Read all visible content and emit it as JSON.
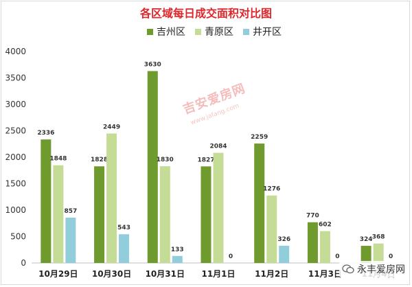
{
  "chart_data": {
    "type": "bar",
    "title": "各区域每日成交面积对比图",
    "categories": [
      "10月29日",
      "10月30日",
      "10月31日",
      "11月1日",
      "11月2日",
      "11月3日",
      "11月4日"
    ],
    "series": [
      {
        "name": "吉州区",
        "color": "#6f9a2e",
        "values": [
          2336,
          1828,
          3630,
          1827,
          2259,
          770,
          324
        ]
      },
      {
        "name": "青原区",
        "color": "#c5dc96",
        "values": [
          1848,
          2449,
          1830,
          2084,
          1276,
          602,
          368
        ]
      },
      {
        "name": "井开区",
        "color": "#92cddc",
        "values": [
          857,
          543,
          133,
          0,
          326,
          0,
          0
        ]
      }
    ],
    "ylim": [
      0,
      4000
    ],
    "yticks": [
      0,
      500,
      1000,
      1500,
      2000,
      2500,
      3000,
      3500,
      4000
    ],
    "legend": "top-center",
    "grid": false
  },
  "watermark": {
    "text": "吉安爱房网",
    "sub": "www.jafang.com"
  },
  "brand": {
    "text": "永丰爱房网",
    "icon": "wechat-icon"
  }
}
